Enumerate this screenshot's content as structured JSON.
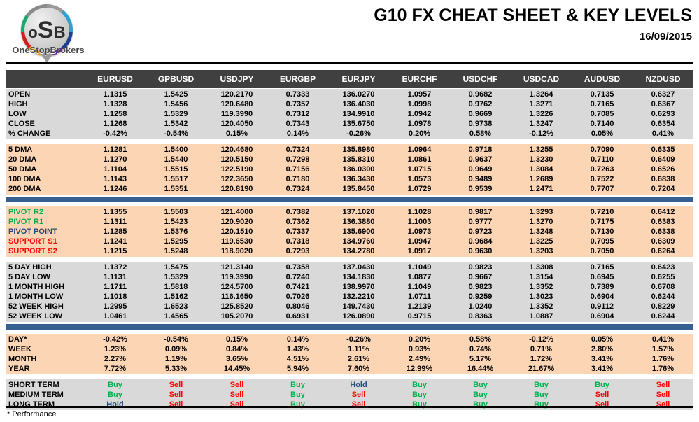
{
  "header": {
    "logo": {
      "text_o": "o",
      "text_s": "S",
      "text_b": "B",
      "brand": "OneStopBrokers"
    },
    "title": "G10 FX CHEAT SHEET & KEY LEVELS",
    "date": "16/09/2015"
  },
  "colors": {
    "header_bar": "#404040",
    "section_gray": "#d9d9d9",
    "section_peach": "#fcd5b4",
    "divider_blue": "#376092",
    "green": "#00B050",
    "red": "#FF0000",
    "blue": "#1F497D",
    "signal": {
      "buy": "#00B050",
      "sell": "#FF0000",
      "hold": "#1F497D"
    }
  },
  "table": {
    "columns": [
      "EURUSD",
      "GPBUSD",
      "USDJPY",
      "EURGBP",
      "EURJPY",
      "EURCHF",
      "USDCHF",
      "USDCAD",
      "AUDUSD",
      "NZDUSD"
    ],
    "sections": [
      {
        "id": "ohlc",
        "bg": "gray",
        "after": "gap",
        "rows": [
          {
            "label": "OPEN",
            "values": [
              "1.1315",
              "1.5425",
              "120.2170",
              "0.7333",
              "136.0270",
              "1.0957",
              "0.9682",
              "1.3264",
              "0.7135",
              "0.6327"
            ]
          },
          {
            "label": "HIGH",
            "values": [
              "1.1328",
              "1.5456",
              "120.6480",
              "0.7357",
              "136.4030",
              "1.0998",
              "0.9762",
              "1.3271",
              "0.7165",
              "0.6367"
            ]
          },
          {
            "label": "LOW",
            "values": [
              "1.1258",
              "1.5329",
              "119.3990",
              "0.7312",
              "134.9910",
              "1.0942",
              "0.9669",
              "1.3226",
              "0.7085",
              "0.6293"
            ]
          },
          {
            "label": "CLOSE",
            "values": [
              "1.1268",
              "1.5342",
              "120.4050",
              "0.7343",
              "135.6750",
              "1.0978",
              "0.9738",
              "1.3247",
              "0.7140",
              "0.6354"
            ]
          },
          {
            "label": "% CHANGE",
            "values": [
              "-0.42%",
              "-0.54%",
              "0.15%",
              "0.14%",
              "-0.26%",
              "0.20%",
              "0.58%",
              "-0.12%",
              "0.05%",
              "0.41%"
            ]
          }
        ]
      },
      {
        "id": "moving-averages",
        "bg": "peach",
        "after": "bar",
        "rows": [
          {
            "label": "5 DMA",
            "values": [
              "1.1281",
              "1.5400",
              "120.4680",
              "0.7324",
              "135.8980",
              "1.0964",
              "0.9718",
              "1.3255",
              "0.7090",
              "0.6335"
            ]
          },
          {
            "label": "20 DMA",
            "values": [
              "1.1270",
              "1.5440",
              "120.5150",
              "0.7298",
              "135.8310",
              "1.0861",
              "0.9637",
              "1.3230",
              "0.7110",
              "0.6409"
            ]
          },
          {
            "label": "50 DMA",
            "values": [
              "1.1104",
              "1.5515",
              "122.5190",
              "0.7156",
              "136.0300",
              "1.0715",
              "0.9649",
              "1.3084",
              "0.7263",
              "0.6526"
            ]
          },
          {
            "label": "100 DMA",
            "values": [
              "1.1143",
              "1.5517",
              "122.3650",
              "0.7180",
              "136.3430",
              "1.0573",
              "0.9489",
              "1.2689",
              "0.7522",
              "0.6838"
            ]
          },
          {
            "label": "200 DMA",
            "values": [
              "1.1246",
              "1.5351",
              "120.8190",
              "0.7324",
              "135.8450",
              "1.0729",
              "0.9539",
              "1.2471",
              "0.7707",
              "0.7204"
            ]
          }
        ]
      },
      {
        "id": "pivots",
        "bg": "peach",
        "after": "gap",
        "rows": [
          {
            "label": "PIVOT R2",
            "label_color": "#00B050",
            "values": [
              "1.1355",
              "1.5503",
              "121.4000",
              "0.7382",
              "137.1020",
              "1.1028",
              "0.9817",
              "1.3293",
              "0.7210",
              "0.6412"
            ]
          },
          {
            "label": "PIVOT R1",
            "label_color": "#00B050",
            "values": [
              "1.1311",
              "1.5423",
              "120.9020",
              "0.7362",
              "136.3880",
              "1.1003",
              "0.9777",
              "1.3270",
              "0.7175",
              "0.6383"
            ]
          },
          {
            "label": "PIVOT POINT",
            "label_color": "#1F497D",
            "values": [
              "1.1285",
              "1.5376",
              "120.1510",
              "0.7337",
              "135.6900",
              "1.0973",
              "0.9723",
              "1.3248",
              "0.7130",
              "0.6338"
            ]
          },
          {
            "label": "SUPPORT S1",
            "label_color": "#FF0000",
            "values": [
              "1.1241",
              "1.5295",
              "119.6530",
              "0.7318",
              "134.9760",
              "1.0947",
              "0.9684",
              "1.3225",
              "0.7095",
              "0.6309"
            ]
          },
          {
            "label": "SUPPORT S2",
            "label_color": "#FF0000",
            "values": [
              "1.1215",
              "1.5248",
              "118.9020",
              "0.7293",
              "134.2780",
              "1.0917",
              "0.9630",
              "1.3203",
              "0.7050",
              "0.6264"
            ]
          }
        ]
      },
      {
        "id": "ranges",
        "bg": "gray",
        "after": "bar",
        "rows": [
          {
            "label": "5 DAY HIGH",
            "values": [
              "1.1372",
              "1.5475",
              "121.3140",
              "0.7358",
              "137.0430",
              "1.1049",
              "0.9823",
              "1.3308",
              "0.7165",
              "0.6423"
            ]
          },
          {
            "label": "5 DAY LOW",
            "values": [
              "1.1131",
              "1.5329",
              "119.3990",
              "0.7240",
              "134.1830",
              "1.0877",
              "0.9667",
              "1.3154",
              "0.6945",
              "0.6255"
            ]
          },
          {
            "label": "1 MONTH HIGH",
            "values": [
              "1.1711",
              "1.5818",
              "124.5700",
              "0.7421",
              "138.9970",
              "1.1049",
              "0.9823",
              "1.3352",
              "0.7389",
              "0.6708"
            ]
          },
          {
            "label": "1 MONTH LOW",
            "values": [
              "1.1018",
              "1.5162",
              "116.1650",
              "0.7026",
              "132.2210",
              "1.0711",
              "0.9259",
              "1.3023",
              "0.6904",
              "0.6244"
            ]
          },
          {
            "label": "52 WEEK HIGH",
            "values": [
              "1.2995",
              "1.6523",
              "125.8520",
              "0.8046",
              "149.7430",
              "1.2139",
              "1.0240",
              "1.3352",
              "0.9112",
              "0.8229"
            ]
          },
          {
            "label": "52 WEEK LOW",
            "values": [
              "1.0461",
              "1.4565",
              "105.2070",
              "0.6931",
              "126.0890",
              "0.9715",
              "0.8363",
              "1.0887",
              "0.6904",
              "0.6244"
            ]
          }
        ]
      },
      {
        "id": "performance",
        "bg": "peach",
        "after": "gap",
        "rows": [
          {
            "label": "DAY*",
            "values": [
              "-0.42%",
              "-0.54%",
              "0.15%",
              "0.14%",
              "-0.26%",
              "0.20%",
              "0.58%",
              "-0.12%",
              "0.05%",
              "0.41%"
            ]
          },
          {
            "label": "WEEK",
            "values": [
              "1.23%",
              "0.09%",
              "0.84%",
              "1.43%",
              "1.11%",
              "0.93%",
              "0.74%",
              "0.71%",
              "2.80%",
              "1.57%"
            ]
          },
          {
            "label": "MONTH",
            "values": [
              "2.27%",
              "1.19%",
              "3.65%",
              "4.51%",
              "2.61%",
              "2.49%",
              "5.17%",
              "1.72%",
              "3.41%",
              "1.76%"
            ]
          },
          {
            "label": "YEAR",
            "values": [
              "7.72%",
              "5.33%",
              "14.45%",
              "5.94%",
              "7.60%",
              "12.99%",
              "16.44%",
              "21.67%",
              "3.41%",
              "1.76%"
            ]
          }
        ]
      },
      {
        "id": "signals",
        "bg": "gray",
        "signal": true,
        "after": "none",
        "rows": [
          {
            "label": "SHORT TERM",
            "values": [
              "Buy",
              "Sell",
              "Sell",
              "Buy",
              "Hold",
              "Buy",
              "Buy",
              "Buy",
              "Buy",
              "Sell"
            ]
          },
          {
            "label": "MEDIUM TERM",
            "values": [
              "Buy",
              "Sell",
              "Sell",
              "Buy",
              "Sell",
              "Buy",
              "Buy",
              "Buy",
              "Sell",
              "Sell"
            ]
          },
          {
            "label": "LONG TERM",
            "values": [
              "Hold",
              "Sell",
              "Sell",
              "Buy",
              "Sell",
              "Buy",
              "Buy",
              "Buy",
              "Sell",
              "Sell"
            ]
          }
        ]
      }
    ]
  },
  "footer": {
    "note": "* Performance"
  }
}
